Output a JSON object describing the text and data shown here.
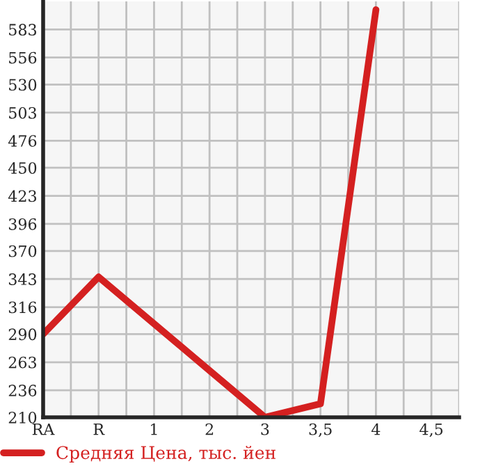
{
  "chart_data": {
    "type": "line",
    "categories": [
      "RA",
      "R",
      "1",
      "2",
      "3",
      "3,5",
      "4",
      "4,5"
    ],
    "series": [
      {
        "name": "Средняя Цена, тыс. йен",
        "color": "#d42020",
        "values": [
          290,
          345,
          300,
          255,
          210,
          223,
          602,
          null
        ]
      }
    ],
    "ylim": [
      210,
      610
    ],
    "yticks": [
      210,
      236,
      263,
      290,
      316,
      343,
      370,
      396,
      423,
      450,
      476,
      503,
      530,
      556,
      583
    ],
    "grid": true,
    "legend": "bottom",
    "marker": "none",
    "line_style": "solid"
  }
}
